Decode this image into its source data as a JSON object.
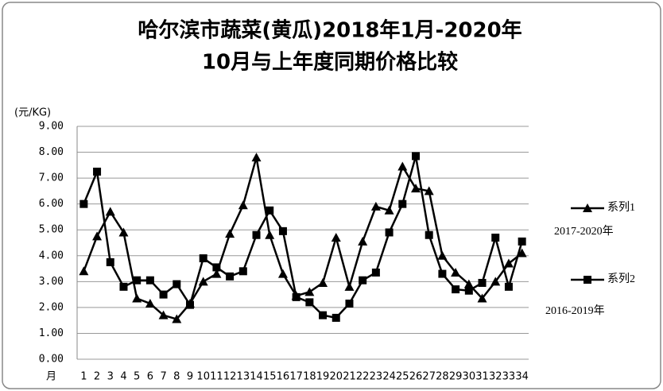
{
  "chart_data": {
    "type": "line",
    "title": [
      "哈尔滨市蔬菜(黄瓜)2018年1月-2020年",
      "10月与上年度同期价格比较"
    ],
    "y_label": "(元/KG)",
    "x_label": "月",
    "categories": [
      "1",
      "2",
      "3",
      "4",
      "5",
      "6",
      "7",
      "8",
      "9",
      "10",
      "11",
      "12",
      "13",
      "14",
      "15",
      "16",
      "17",
      "18",
      "19",
      "20",
      "21",
      "22",
      "23",
      "24",
      "25",
      "26",
      "27",
      "28",
      "29",
      "30",
      "31",
      "32",
      "33",
      "34"
    ],
    "series": [
      {
        "name": "系列1",
        "color": "#000000",
        "marker": "triangle",
        "note": "2017-2020年",
        "values": [
          3.4,
          4.75,
          5.7,
          4.9,
          2.35,
          2.15,
          1.7,
          1.55,
          2.15,
          3.0,
          3.3,
          4.85,
          5.95,
          7.8,
          4.8,
          3.3,
          2.45,
          2.6,
          2.95,
          4.7,
          2.8,
          4.55,
          5.9,
          5.75,
          7.45,
          6.6,
          6.5,
          4.0,
          3.35,
          2.9,
          2.35,
          3.0,
          3.7,
          4.1
        ]
      },
      {
        "name": "系列2",
        "color": "#000000",
        "marker": "square",
        "note": "2016-2019年",
        "values": [
          6.0,
          7.25,
          3.75,
          2.8,
          3.05,
          3.05,
          2.5,
          2.9,
          2.1,
          3.9,
          3.55,
          3.2,
          3.4,
          4.8,
          5.75,
          4.95,
          2.4,
          2.2,
          1.7,
          1.6,
          2.15,
          3.05,
          3.35,
          4.9,
          6.0,
          7.85,
          4.8,
          3.3,
          2.7,
          2.65,
          2.95,
          4.7,
          2.8,
          4.55
        ]
      }
    ],
    "ylim": [
      0,
      9
    ],
    "yticks": [
      {
        "value": 0,
        "label": "0.00"
      },
      {
        "value": 1,
        "label": "1.00"
      },
      {
        "value": 2,
        "label": "2.00"
      },
      {
        "value": 3,
        "label": "3.00"
      },
      {
        "value": 4,
        "label": "4.00"
      },
      {
        "value": 5,
        "label": "5.00"
      },
      {
        "value": 6,
        "label": "6.00"
      },
      {
        "value": 7,
        "label": "7.00"
      },
      {
        "value": 8,
        "label": "8.00"
      },
      {
        "value": 9,
        "label": "9.00"
      }
    ],
    "grid": true
  }
}
